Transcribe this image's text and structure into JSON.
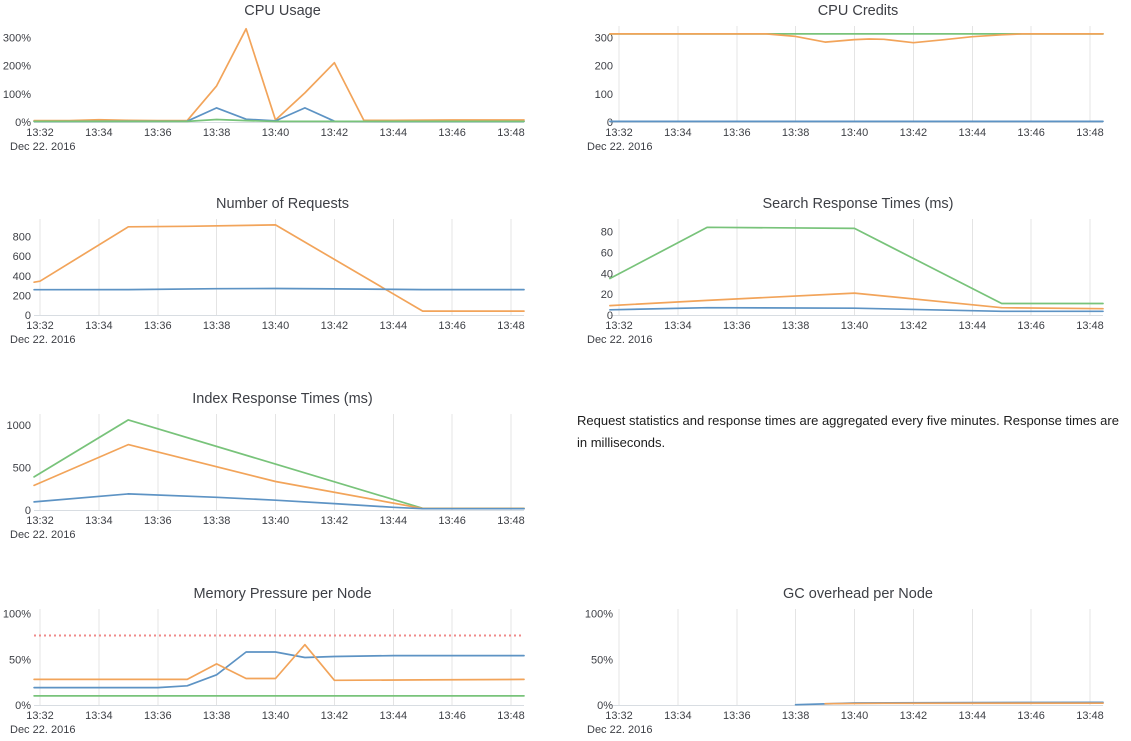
{
  "note": {
    "text": "Request statistics and response times are aggregated every five minutes. Response times are in milliseconds."
  },
  "colors": {
    "orange": "#f2a45a",
    "blue": "#5d93c4",
    "green": "#78c37a",
    "threshold_red": "#ef8a8a",
    "gridline": "#e4e4e4",
    "axis_line": "#d8dde2",
    "text": "#3d3f45"
  },
  "chart_data": [
    {
      "id": "cpu-usage",
      "type": "line",
      "title": "CPU Usage",
      "column": "left",
      "grid": false,
      "ymax": 340,
      "x_ticks": [
        "13:32",
        "13:34",
        "13:36",
        "13:38",
        "13:40",
        "13:42",
        "13:44",
        "13:46",
        "13:48"
      ],
      "x_date": "Dec 22. 2016",
      "y_ticks": [
        {
          "v": 0,
          "label": "0%"
        },
        {
          "v": 100,
          "label": "100%"
        },
        {
          "v": 200,
          "label": "200%"
        },
        {
          "v": 300,
          "label": "300%"
        }
      ],
      "series": [
        {
          "name": "instance-orange",
          "color": "#f2a45a",
          "points": [
            [
              -0.2,
              5
            ],
            [
              1,
              5
            ],
            [
              2,
              8
            ],
            [
              3,
              6
            ],
            [
              4,
              5
            ],
            [
              5,
              5
            ],
            [
              6,
              128
            ],
            [
              7,
              330
            ],
            [
              8,
              7
            ],
            [
              9,
              103
            ],
            [
              10,
              210
            ],
            [
              11,
              6
            ],
            [
              12,
              6
            ],
            [
              14,
              7
            ],
            [
              16.44,
              7
            ]
          ]
        },
        {
          "name": "instance-blue",
          "color": "#5d93c4",
          "points": [
            [
              -0.2,
              2
            ],
            [
              5,
              3
            ],
            [
              6,
              50
            ],
            [
              7,
              10
            ],
            [
              8,
              4
            ],
            [
              9,
              50
            ],
            [
              10,
              3
            ],
            [
              12,
              2
            ],
            [
              16.44,
              2
            ]
          ]
        },
        {
          "name": "instance-green",
          "color": "#78c37a",
          "points": [
            [
              -0.2,
              2
            ],
            [
              5,
              2
            ],
            [
              6,
              9
            ],
            [
              7,
              5
            ],
            [
              8,
              2
            ],
            [
              16.44,
              2
            ]
          ]
        }
      ]
    },
    {
      "id": "cpu-credits",
      "type": "line",
      "title": "CPU Credits",
      "column": "right",
      "grid": true,
      "ymax": 340,
      "x_ticks": [
        "13:32",
        "13:34",
        "13:36",
        "13:38",
        "13:40",
        "13:42",
        "13:44",
        "13:46",
        "13:48"
      ],
      "x_date": "Dec 22. 2016",
      "y_ticks": [
        {
          "v": 0,
          "label": "0"
        },
        {
          "v": 100,
          "label": "100"
        },
        {
          "v": 200,
          "label": "200"
        },
        {
          "v": 300,
          "label": "300"
        }
      ],
      "series": [
        {
          "name": "instance-green",
          "color": "#78c37a",
          "points": [
            [
              -0.31,
              312
            ],
            [
              16.44,
              312
            ]
          ]
        },
        {
          "name": "instance-orange",
          "color": "#f2a45a",
          "points": [
            [
              -0.31,
              312
            ],
            [
              5,
              312
            ],
            [
              6,
              303
            ],
            [
              7,
              283
            ],
            [
              8,
              292
            ],
            [
              8.5,
              294
            ],
            [
              9,
              293
            ],
            [
              10,
              281
            ],
            [
              11,
              291
            ],
            [
              12,
              302
            ],
            [
              13,
              309
            ],
            [
              13.7,
              312
            ],
            [
              16.44,
              312
            ]
          ]
        },
        {
          "name": "instance-blue",
          "color": "#5d93c4",
          "points": [
            [
              -0.31,
              2
            ],
            [
              16.44,
              2
            ]
          ]
        }
      ]
    },
    {
      "id": "number-of-requests",
      "type": "line",
      "title": "Number of Requests",
      "column": "left",
      "grid": true,
      "ymax": 980,
      "x_ticks": [
        "13:32",
        "13:34",
        "13:36",
        "13:38",
        "13:40",
        "13:42",
        "13:44",
        "13:46",
        "13:48"
      ],
      "x_date": "Dec 22. 2016",
      "y_ticks": [
        {
          "v": 0,
          "label": "0"
        },
        {
          "v": 200,
          "label": "200"
        },
        {
          "v": 400,
          "label": "400"
        },
        {
          "v": 600,
          "label": "600"
        },
        {
          "v": 800,
          "label": "800"
        }
      ],
      "series": [
        {
          "name": "requests-orange",
          "color": "#f2a45a",
          "points": [
            [
              -0.2,
              335
            ],
            [
              0,
              345
            ],
            [
              3,
              900
            ],
            [
              5,
              905
            ],
            [
              8,
              920
            ],
            [
              13,
              40
            ],
            [
              16.44,
              40
            ]
          ]
        },
        {
          "name": "requests-blue",
          "color": "#5d93c4",
          "points": [
            [
              -0.2,
              258
            ],
            [
              3,
              259
            ],
            [
              6,
              268
            ],
            [
              8,
              271
            ],
            [
              10,
              266
            ],
            [
              13,
              259
            ],
            [
              16.44,
              259
            ]
          ]
        }
      ]
    },
    {
      "id": "search-response-times",
      "type": "line",
      "title": "Search Response Times (ms)",
      "column": "right",
      "grid": true,
      "ymax": 92,
      "x_ticks": [
        "13:32",
        "13:34",
        "13:36",
        "13:38",
        "13:40",
        "13:42",
        "13:44",
        "13:46",
        "13:48"
      ],
      "x_date": "Dec 22. 2016",
      "y_ticks": [
        {
          "v": 0,
          "label": "0"
        },
        {
          "v": 20,
          "label": "20"
        },
        {
          "v": 40,
          "label": "40"
        },
        {
          "v": 60,
          "label": "60"
        },
        {
          "v": 80,
          "label": "80"
        }
      ],
      "series": [
        {
          "name": "search-green",
          "color": "#78c37a",
          "points": [
            [
              -0.31,
              35
            ],
            [
              3,
              84
            ],
            [
              8,
              83
            ],
            [
              13,
              11
            ],
            [
              16.44,
              11
            ]
          ]
        },
        {
          "name": "search-orange",
          "color": "#f2a45a",
          "points": [
            [
              -0.31,
              9
            ],
            [
              3,
              14
            ],
            [
              8,
              21
            ],
            [
              13,
              7
            ],
            [
              16.44,
              6
            ]
          ]
        },
        {
          "name": "search-blue",
          "color": "#5d93c4",
          "points": [
            [
              -0.31,
              5
            ],
            [
              3,
              7
            ],
            [
              8,
              6.5
            ],
            [
              13,
              3.5
            ],
            [
              16.44,
              3.5
            ]
          ]
        }
      ]
    },
    {
      "id": "index-response-times",
      "type": "line",
      "title": "Index Response Times (ms)",
      "column": "left",
      "grid": true,
      "ymax": 1130,
      "x_ticks": [
        "13:32",
        "13:34",
        "13:36",
        "13:38",
        "13:40",
        "13:42",
        "13:44",
        "13:46",
        "13:48"
      ],
      "x_date": "Dec 22. 2016",
      "y_ticks": [
        {
          "v": 0,
          "label": "0"
        },
        {
          "v": 500,
          "label": "500"
        },
        {
          "v": 1000,
          "label": "1000"
        }
      ],
      "series": [
        {
          "name": "index-green",
          "color": "#78c37a",
          "points": [
            [
              -0.2,
              390
            ],
            [
              3,
              1060
            ],
            [
              8,
              540
            ],
            [
              13,
              20
            ],
            [
              16.44,
              20
            ]
          ]
        },
        {
          "name": "index-orange",
          "color": "#f2a45a",
          "points": [
            [
              -0.2,
              290
            ],
            [
              3,
              770
            ],
            [
              8,
              335
            ],
            [
              13,
              18
            ],
            [
              16.44,
              18
            ]
          ]
        },
        {
          "name": "index-blue",
          "color": "#5d93c4",
          "points": [
            [
              -0.2,
              95
            ],
            [
              3,
              190
            ],
            [
              6,
              150
            ],
            [
              8,
              115
            ],
            [
              10,
              75
            ],
            [
              12,
              32
            ],
            [
              13,
              15
            ],
            [
              16.44,
              15
            ]
          ]
        }
      ]
    },
    {
      "id": "memory-pressure-per-node",
      "type": "line",
      "title": "Memory Pressure per Node",
      "column": "left",
      "grid": true,
      "ymax": 105,
      "threshold": {
        "value": 76,
        "color": "#ef8a8a",
        "style": "dotted"
      },
      "x_ticks": [
        "13:32",
        "13:34",
        "13:36",
        "13:38",
        "13:40",
        "13:42",
        "13:44",
        "13:46",
        "13:48"
      ],
      "x_date": "Dec 22. 2016",
      "y_ticks": [
        {
          "v": 0,
          "label": "0%"
        },
        {
          "v": 50,
          "label": "50%"
        },
        {
          "v": 100,
          "label": "100%"
        }
      ],
      "series": [
        {
          "name": "node-blue",
          "color": "#5d93c4",
          "points": [
            [
              -0.2,
              19
            ],
            [
              4,
              19
            ],
            [
              5,
              21
            ],
            [
              6,
              33
            ],
            [
              7,
              58
            ],
            [
              8,
              58
            ],
            [
              9,
              52
            ],
            [
              10,
              53
            ],
            [
              12,
              54
            ],
            [
              16.44,
              54
            ]
          ]
        },
        {
          "name": "node-orange",
          "color": "#f2a45a",
          "points": [
            [
              -0.2,
              28
            ],
            [
              5,
              28
            ],
            [
              6,
              45
            ],
            [
              7,
              29
            ],
            [
              8,
              29
            ],
            [
              9,
              66
            ],
            [
              10,
              27
            ],
            [
              13,
              27.5
            ],
            [
              16.44,
              28
            ]
          ]
        },
        {
          "name": "node-green",
          "color": "#78c37a",
          "points": [
            [
              -0.2,
              10
            ],
            [
              16.44,
              10
            ]
          ]
        }
      ]
    },
    {
      "id": "gc-overhead-per-node",
      "type": "line",
      "title": "GC overhead per Node",
      "column": "right",
      "grid": true,
      "ymax": 105,
      "x_ticks": [
        "13:32",
        "13:34",
        "13:36",
        "13:38",
        "13:40",
        "13:42",
        "13:44",
        "13:46",
        "13:48"
      ],
      "x_date": "Dec 22. 2016",
      "y_ticks": [
        {
          "v": 0,
          "label": "0%"
        },
        {
          "v": 50,
          "label": "50%"
        },
        {
          "v": 100,
          "label": "100%"
        }
      ],
      "series": [
        {
          "name": "node-blue",
          "color": "#5d93c4",
          "points": [
            [
              6,
              0.3
            ],
            [
              7,
              1.2
            ],
            [
              8,
              2.2
            ],
            [
              12,
              2.6
            ],
            [
              16.44,
              2.8
            ]
          ]
        },
        {
          "name": "node-orange",
          "color": "#f2a45a",
          "points": [
            [
              7,
              1.4
            ],
            [
              9,
              1.9
            ],
            [
              16.44,
              2.0
            ]
          ]
        }
      ]
    }
  ]
}
